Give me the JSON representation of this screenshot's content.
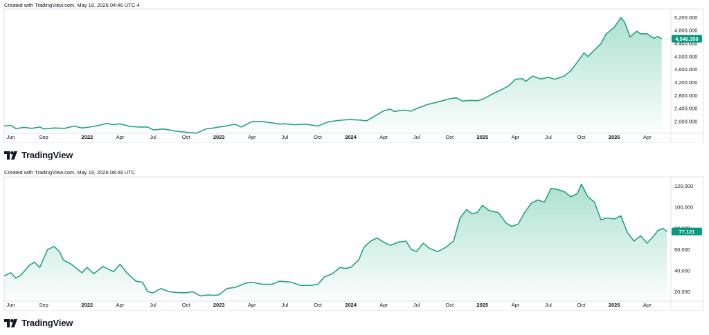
{
  "colors": {
    "line": "#26a17f",
    "fill_top": "#9ddcc6",
    "label_bg": "#089981",
    "axis_border": "#e0e3eb"
  },
  "panels": [
    {
      "caption": "Created with TradingView.com, May 19, 2026 04:46 UTC-4",
      "logo": "TradingView",
      "price_label": "4,546.350"
    },
    {
      "caption": "Created with TradingView.com, May 19, 2026 08:48 UTC",
      "logo": "TradingView",
      "price_label": "77,121"
    }
  ],
  "chart_data": [
    {
      "type": "area",
      "x_ticks": [
        {
          "label": "Jun",
          "t": 2021.42
        },
        {
          "label": "Sep",
          "t": 2021.67
        },
        {
          "label": "2022",
          "t": 2022.0,
          "year": true
        },
        {
          "label": "Apr",
          "t": 2022.25
        },
        {
          "label": "Jul",
          "t": 2022.5
        },
        {
          "label": "Oct",
          "t": 2022.75
        },
        {
          "label": "2023",
          "t": 2023.0,
          "year": true
        },
        {
          "label": "Apr",
          "t": 2023.25
        },
        {
          "label": "Jul",
          "t": 2023.5
        },
        {
          "label": "Oct",
          "t": 2023.75
        },
        {
          "label": "2024",
          "t": 2024.0,
          "year": true
        },
        {
          "label": "Apr",
          "t": 2024.25
        },
        {
          "label": "Jul",
          "t": 2024.5
        },
        {
          "label": "Oct",
          "t": 2024.75
        },
        {
          "label": "2025",
          "t": 2025.0,
          "year": true
        },
        {
          "label": "Apr",
          "t": 2025.25
        },
        {
          "label": "Jul",
          "t": 2025.5
        },
        {
          "label": "Oct",
          "t": 2025.75
        },
        {
          "label": "2026",
          "t": 2026.0,
          "year": true
        },
        {
          "label": "Apr",
          "t": 2026.25
        }
      ],
      "y_ticks": [
        "5,200.000",
        "4,800.000",
        "4,400.000",
        "4,000.000",
        "3,600.000",
        "3,200.000",
        "2,800.000",
        "2,400.000",
        "2,000.000"
      ],
      "y_tick_values": [
        5200,
        4800,
        4400,
        4000,
        3600,
        3200,
        2800,
        2400,
        2000
      ],
      "ylim": [
        1700,
        5400
      ],
      "xlim": [
        2021.37,
        2026.43
      ],
      "last_value": 4546.35,
      "points": [
        [
          2021.37,
          1860
        ],
        [
          2021.42,
          1880
        ],
        [
          2021.46,
          1780
        ],
        [
          2021.52,
          1820
        ],
        [
          2021.58,
          1790
        ],
        [
          2021.64,
          1830
        ],
        [
          2021.67,
          1770
        ],
        [
          2021.75,
          1800
        ],
        [
          2021.83,
          1790
        ],
        [
          2021.9,
          1860
        ],
        [
          2021.96,
          1800
        ],
        [
          2022.0,
          1820
        ],
        [
          2022.08,
          1870
        ],
        [
          2022.15,
          1940
        ],
        [
          2022.2,
          1900
        ],
        [
          2022.25,
          1930
        ],
        [
          2022.32,
          1850
        ],
        [
          2022.4,
          1830
        ],
        [
          2022.46,
          1830
        ],
        [
          2022.5,
          1740
        ],
        [
          2022.58,
          1770
        ],
        [
          2022.66,
          1710
        ],
        [
          2022.75,
          1670
        ],
        [
          2022.83,
          1640
        ],
        [
          2022.9,
          1770
        ],
        [
          2022.96,
          1800
        ],
        [
          2023.0,
          1830
        ],
        [
          2023.08,
          1880
        ],
        [
          2023.12,
          1920
        ],
        [
          2023.17,
          1830
        ],
        [
          2023.25,
          2000
        ],
        [
          2023.33,
          2000
        ],
        [
          2023.4,
          1960
        ],
        [
          2023.46,
          1920
        ],
        [
          2023.5,
          1930
        ],
        [
          2023.58,
          1900
        ],
        [
          2023.66,
          1920
        ],
        [
          2023.75,
          1860
        ],
        [
          2023.83,
          1990
        ],
        [
          2023.9,
          2030
        ],
        [
          2023.96,
          2050
        ],
        [
          2024.0,
          2060
        ],
        [
          2024.08,
          2040
        ],
        [
          2024.12,
          2020
        ],
        [
          2024.18,
          2160
        ],
        [
          2024.25,
          2330
        ],
        [
          2024.3,
          2380
        ],
        [
          2024.33,
          2310
        ],
        [
          2024.4,
          2350
        ],
        [
          2024.46,
          2320
        ],
        [
          2024.5,
          2400
        ],
        [
          2024.58,
          2520
        ],
        [
          2024.66,
          2600
        ],
        [
          2024.75,
          2700
        ],
        [
          2024.8,
          2730
        ],
        [
          2024.85,
          2630
        ],
        [
          2024.9,
          2650
        ],
        [
          2024.96,
          2640
        ],
        [
          2025.0,
          2680
        ],
        [
          2025.05,
          2790
        ],
        [
          2025.1,
          2900
        ],
        [
          2025.15,
          2990
        ],
        [
          2025.2,
          3100
        ],
        [
          2025.25,
          3300
        ],
        [
          2025.3,
          3320
        ],
        [
          2025.33,
          3240
        ],
        [
          2025.38,
          3400
        ],
        [
          2025.44,
          3310
        ],
        [
          2025.5,
          3360
        ],
        [
          2025.55,
          3300
        ],
        [
          2025.62,
          3400
        ],
        [
          2025.67,
          3560
        ],
        [
          2025.72,
          3830
        ],
        [
          2025.77,
          4110
        ],
        [
          2025.8,
          4000
        ],
        [
          2025.85,
          4200
        ],
        [
          2025.9,
          4400
        ],
        [
          2025.94,
          4700
        ],
        [
          2026.0,
          4900
        ],
        [
          2026.05,
          5200
        ],
        [
          2026.08,
          5050
        ],
        [
          2026.12,
          4600
        ],
        [
          2026.17,
          4780
        ],
        [
          2026.2,
          4700
        ],
        [
          2026.25,
          4700
        ],
        [
          2026.3,
          4560
        ],
        [
          2026.33,
          4620
        ],
        [
          2026.36,
          4546
        ]
      ]
    },
    {
      "type": "area",
      "x_ticks": [
        {
          "label": "Jun",
          "t": 2021.42
        },
        {
          "label": "Sep",
          "t": 2021.67
        },
        {
          "label": "2022",
          "t": 2022.0,
          "year": true
        },
        {
          "label": "Apr",
          "t": 2022.25
        },
        {
          "label": "Jul",
          "t": 2022.5
        },
        {
          "label": "Oct",
          "t": 2022.75
        },
        {
          "label": "2023",
          "t": 2023.0,
          "year": true
        },
        {
          "label": "Apr",
          "t": 2023.25
        },
        {
          "label": "Jul",
          "t": 2023.5
        },
        {
          "label": "Oct",
          "t": 2023.75
        },
        {
          "label": "2024",
          "t": 2024.0,
          "year": true
        },
        {
          "label": "Apr",
          "t": 2024.25
        },
        {
          "label": "Jul",
          "t": 2024.5
        },
        {
          "label": "Oct",
          "t": 2024.75
        },
        {
          "label": "2025",
          "t": 2025.0,
          "year": true
        },
        {
          "label": "Apr",
          "t": 2025.25
        },
        {
          "label": "Jul",
          "t": 2025.5
        },
        {
          "label": "Oct",
          "t": 2025.75
        },
        {
          "label": "2026",
          "t": 2026.0,
          "year": true
        },
        {
          "label": "Apr",
          "t": 2026.25
        }
      ],
      "y_ticks": [
        "120,000",
        "100,000",
        "80,000",
        "60,000",
        "40,000",
        "20,000"
      ],
      "y_tick_values": [
        120000,
        100000,
        80000,
        60000,
        40000,
        20000
      ],
      "ylim": [
        13000,
        127000
      ],
      "xlim": [
        2021.37,
        2026.43
      ],
      "last_value": 77121,
      "points": [
        [
          2021.37,
          35000
        ],
        [
          2021.42,
          38000
        ],
        [
          2021.46,
          33000
        ],
        [
          2021.5,
          36000
        ],
        [
          2021.56,
          45000
        ],
        [
          2021.6,
          48000
        ],
        [
          2021.64,
          43000
        ],
        [
          2021.7,
          60000
        ],
        [
          2021.75,
          63000
        ],
        [
          2021.79,
          58000
        ],
        [
          2021.82,
          50000
        ],
        [
          2021.88,
          46000
        ],
        [
          2021.92,
          42000
        ],
        [
          2021.96,
          38000
        ],
        [
          2022.0,
          43000
        ],
        [
          2022.05,
          37000
        ],
        [
          2022.12,
          44000
        ],
        [
          2022.2,
          39000
        ],
        [
          2022.25,
          46000
        ],
        [
          2022.3,
          38000
        ],
        [
          2022.37,
          30000
        ],
        [
          2022.42,
          29000
        ],
        [
          2022.46,
          20000
        ],
        [
          2022.5,
          19000
        ],
        [
          2022.56,
          23000
        ],
        [
          2022.62,
          20000
        ],
        [
          2022.7,
          19000
        ],
        [
          2022.75,
          19000
        ],
        [
          2022.8,
          20000
        ],
        [
          2022.86,
          16000
        ],
        [
          2022.92,
          17000
        ],
        [
          2022.96,
          16500
        ],
        [
          2023.0,
          17000
        ],
        [
          2023.06,
          23000
        ],
        [
          2023.12,
          24000
        ],
        [
          2023.2,
          28000
        ],
        [
          2023.25,
          29000
        ],
        [
          2023.33,
          27000
        ],
        [
          2023.4,
          27000
        ],
        [
          2023.46,
          30000
        ],
        [
          2023.55,
          29000
        ],
        [
          2023.62,
          26000
        ],
        [
          2023.7,
          26000
        ],
        [
          2023.75,
          27000
        ],
        [
          2023.8,
          34000
        ],
        [
          2023.86,
          37000
        ],
        [
          2023.92,
          43000
        ],
        [
          2023.96,
          42000
        ],
        [
          2024.0,
          43000
        ],
        [
          2024.06,
          50000
        ],
        [
          2024.1,
          62000
        ],
        [
          2024.15,
          68000
        ],
        [
          2024.2,
          71000
        ],
        [
          2024.25,
          67000
        ],
        [
          2024.3,
          64000
        ],
        [
          2024.36,
          67000
        ],
        [
          2024.42,
          68000
        ],
        [
          2024.46,
          60000
        ],
        [
          2024.5,
          58000
        ],
        [
          2024.55,
          66000
        ],
        [
          2024.6,
          61000
        ],
        [
          2024.66,
          58000
        ],
        [
          2024.72,
          62000
        ],
        [
          2024.78,
          68000
        ],
        [
          2024.83,
          90000
        ],
        [
          2024.88,
          98000
        ],
        [
          2024.92,
          94000
        ],
        [
          2024.96,
          95000
        ],
        [
          2025.0,
          102000
        ],
        [
          2025.05,
          97000
        ],
        [
          2025.12,
          95000
        ],
        [
          2025.18,
          85000
        ],
        [
          2025.22,
          82000
        ],
        [
          2025.27,
          84000
        ],
        [
          2025.32,
          95000
        ],
        [
          2025.37,
          104000
        ],
        [
          2025.42,
          107000
        ],
        [
          2025.47,
          105000
        ],
        [
          2025.52,
          118000
        ],
        [
          2025.57,
          117000
        ],
        [
          2025.62,
          115000
        ],
        [
          2025.67,
          110000
        ],
        [
          2025.72,
          113000
        ],
        [
          2025.75,
          122000
        ],
        [
          2025.8,
          110000
        ],
        [
          2025.85,
          105000
        ],
        [
          2025.9,
          88000
        ],
        [
          2025.94,
          90000
        ],
        [
          2026.0,
          89000
        ],
        [
          2026.05,
          92000
        ],
        [
          2026.1,
          76000
        ],
        [
          2026.15,
          68000
        ],
        [
          2026.2,
          73000
        ],
        [
          2026.25,
          66000
        ],
        [
          2026.3,
          73000
        ],
        [
          2026.33,
          78000
        ],
        [
          2026.37,
          80000
        ],
        [
          2026.4,
          77121
        ]
      ]
    }
  ]
}
